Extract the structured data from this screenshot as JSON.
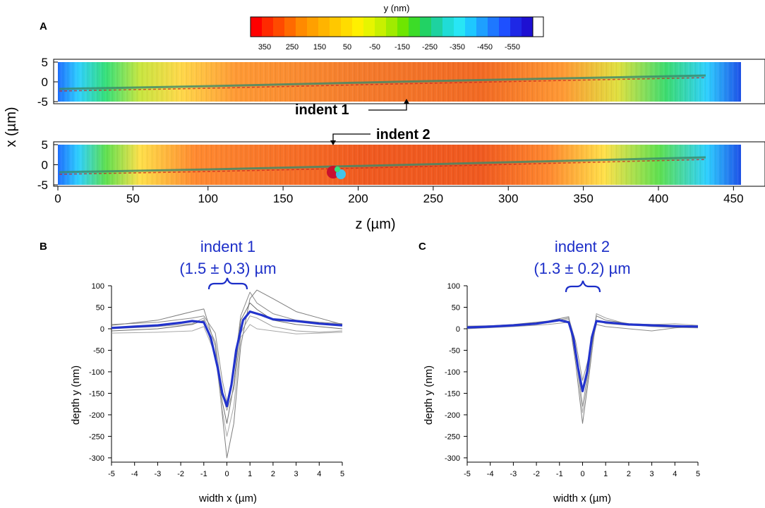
{
  "panel_a": {
    "label": "A",
    "colorbar": {
      "title": "y (nm)",
      "ticks": [
        "350",
        "250",
        "150",
        "50",
        "-50",
        "-150",
        "-250",
        "-350",
        "-450",
        "-550"
      ],
      "range": [
        400,
        -600
      ]
    },
    "ylabel": "x (µm)",
    "xlabel": "z (µm)",
    "upper_yticks": [
      "5",
      "0",
      "-5"
    ],
    "lower_yticks": [
      "5",
      "0",
      "-5"
    ],
    "xticks": [
      "0",
      "50",
      "100",
      "150",
      "200",
      "250",
      "300",
      "350",
      "400",
      "450"
    ],
    "annotations": {
      "indent1": "indent 1",
      "indent2": "indent 2"
    },
    "indent_positions_um": {
      "indent1_z": 228,
      "indent2_z": 178
    },
    "x_range_um": [
      -5,
      5
    ],
    "z_range_um": [
      0,
      455
    ]
  },
  "chart_data": [
    {
      "type": "line",
      "panel": "B",
      "title": "indent 1",
      "subtitle": "(1.5 ± 0.3) µm",
      "xlabel": "width x (µm)",
      "ylabel": "depth y (nm)",
      "xlim": [
        -5,
        5
      ],
      "ylim": [
        -310,
        100
      ],
      "xticks": [
        "-5",
        "-4",
        "-3",
        "-2",
        "-1",
        "0",
        "1",
        "2",
        "3",
        "4",
        "5"
      ],
      "yticks": [
        "100",
        "50",
        "0",
        "-50",
        "-100",
        "-150",
        "-200",
        "-250",
        "-300"
      ],
      "series": [
        {
          "name": "mean",
          "color": "#2233cc",
          "x": [
            -5,
            -4,
            -3,
            -2,
            -1.5,
            -1,
            -0.7,
            -0.4,
            -0.2,
            0,
            0.2,
            0.4,
            0.7,
            1,
            1.5,
            2,
            3,
            4,
            5
          ],
          "y": [
            2,
            5,
            8,
            14,
            18,
            15,
            -20,
            -90,
            -150,
            -180,
            -130,
            -50,
            20,
            40,
            32,
            22,
            18,
            12,
            8
          ]
        },
        {
          "name": "profile 1",
          "color": "#666666",
          "x": [
            -5,
            -3,
            -1.5,
            -1,
            -0.5,
            -0.2,
            0,
            0.3,
            0.6,
            1,
            1.3,
            2,
            3,
            4,
            5
          ],
          "y": [
            8,
            20,
            40,
            46,
            -40,
            -200,
            -300,
            -220,
            -40,
            70,
            90,
            70,
            40,
            25,
            10
          ]
        },
        {
          "name": "profile 2",
          "color": "#555555",
          "x": [
            -5,
            -3,
            -1.5,
            -1,
            -0.5,
            -0.2,
            0,
            0.3,
            0.6,
            1,
            1.3,
            2,
            3,
            4,
            5
          ],
          "y": [
            -5,
            0,
            10,
            20,
            -60,
            -170,
            -220,
            -130,
            20,
            60,
            45,
            20,
            10,
            5,
            0
          ]
        },
        {
          "name": "profile 3",
          "color": "#888888",
          "x": [
            -5,
            -3,
            -1.5,
            -1,
            -0.5,
            -0.2,
            0,
            0.3,
            0.6,
            1,
            1.3,
            2,
            3,
            4,
            5
          ],
          "y": [
            0,
            5,
            12,
            25,
            -30,
            -150,
            -190,
            -140,
            -10,
            30,
            25,
            5,
            -5,
            -8,
            -5
          ]
        },
        {
          "name": "profile 4",
          "color": "#777777",
          "x": [
            -5,
            -3,
            -1.5,
            -1,
            -0.5,
            -0.2,
            0,
            0.3,
            0.6,
            1,
            1.3,
            2,
            3,
            4,
            5
          ],
          "y": [
            10,
            15,
            25,
            30,
            -10,
            -120,
            -170,
            -100,
            30,
            85,
            60,
            35,
            20,
            15,
            12
          ]
        },
        {
          "name": "profile 5",
          "color": "#999999",
          "x": [
            -5,
            -3,
            -1.5,
            -1,
            -0.5,
            -0.2,
            0,
            0.3,
            0.6,
            1,
            1.3,
            2,
            3,
            4,
            5
          ],
          "y": [
            -10,
            -8,
            -5,
            5,
            -60,
            -190,
            -250,
            -180,
            -20,
            10,
            0,
            -5,
            -12,
            -10,
            -8
          ]
        }
      ]
    },
    {
      "type": "line",
      "panel": "C",
      "title": "indent 2",
      "subtitle": "(1.3 ± 0.2) µm",
      "xlabel": "width x (µm)",
      "ylabel": "depth y (nm)",
      "xlim": [
        -5,
        5
      ],
      "ylim": [
        -310,
        100
      ],
      "xticks": [
        "-5",
        "-4",
        "-3",
        "-2",
        "-1",
        "0",
        "1",
        "2",
        "3",
        "4",
        "5"
      ],
      "yticks": [
        "100",
        "50",
        "0",
        "-50",
        "-100",
        "-150",
        "-200",
        "-250",
        "-300"
      ],
      "series": [
        {
          "name": "mean",
          "color": "#2233cc",
          "x": [
            -5,
            -4,
            -3,
            -2,
            -1,
            -0.6,
            -0.4,
            -0.2,
            0,
            0.2,
            0.4,
            0.6,
            1,
            2,
            3,
            4,
            5
          ],
          "y": [
            3,
            5,
            8,
            12,
            20,
            15,
            -20,
            -90,
            -145,
            -100,
            -20,
            18,
            15,
            10,
            8,
            6,
            5
          ]
        },
        {
          "name": "profile 1",
          "color": "#666666",
          "x": [
            -5,
            -3,
            -1.5,
            -0.6,
            -0.3,
            0,
            0.3,
            0.6,
            1,
            2,
            3,
            4,
            5
          ],
          "y": [
            4,
            10,
            18,
            28,
            -80,
            -220,
            -100,
            30,
            20,
            12,
            10,
            8,
            6
          ]
        },
        {
          "name": "profile 2",
          "color": "#888888",
          "x": [
            -5,
            -3,
            -1.5,
            -0.6,
            -0.3,
            0,
            0.3,
            0.6,
            1,
            2,
            3,
            4,
            5
          ],
          "y": [
            0,
            5,
            10,
            15,
            -50,
            -180,
            -80,
            35,
            25,
            10,
            5,
            3,
            2
          ]
        },
        {
          "name": "profile 3",
          "color": "#777777",
          "x": [
            -5,
            -3,
            -1.5,
            -0.6,
            -0.3,
            0,
            0.3,
            0.6,
            1,
            2,
            3,
            4,
            5
          ],
          "y": [
            6,
            8,
            15,
            25,
            -30,
            -120,
            -60,
            10,
            5,
            0,
            -5,
            2,
            6
          ]
        },
        {
          "name": "profile 4",
          "color": "#999999",
          "x": [
            -5,
            -3,
            -1.5,
            -0.6,
            -0.3,
            0,
            0.3,
            0.6,
            1,
            2,
            3,
            4,
            5
          ],
          "y": [
            2,
            6,
            14,
            22,
            -60,
            -195,
            -90,
            20,
            12,
            8,
            10,
            12,
            8
          ]
        }
      ]
    }
  ]
}
